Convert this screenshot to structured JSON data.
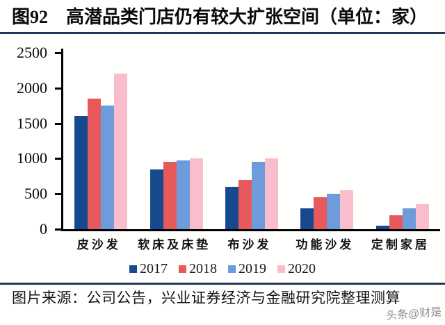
{
  "title": "图92　高潜品类门店仍有较大扩张空间（单位：家）",
  "source_note": "图片来源：公司公告，兴业证券经济与金融研究院整理测算",
  "watermark": "头条@财是",
  "colors": {
    "divider": "#27355A",
    "axis": "#000000",
    "watermark_text": "#8F8F8F",
    "series_2017": "#17498F",
    "series_2018": "#E8595B",
    "series_2019": "#6D9BDB",
    "series_2020": "#F9BDCB"
  },
  "chart_data": {
    "type": "bar",
    "title": "图92 高潜品类门店仍有较大扩张空间（单位：家）",
    "categories": [
      "皮沙发",
      "软床及床垫",
      "布沙发",
      "功能沙发",
      "定制家居"
    ],
    "series": [
      {
        "name": "2017",
        "color": "#17498F",
        "values": [
          1600,
          850,
          600,
          300,
          50
        ]
      },
      {
        "name": "2018",
        "color": "#E8595B",
        "values": [
          1850,
          950,
          700,
          450,
          200
        ]
      },
      {
        "name": "2019",
        "color": "#6D9BDB",
        "values": [
          1750,
          975,
          950,
          500,
          300
        ]
      },
      {
        "name": "2020",
        "color": "#F9BDCB",
        "values": [
          2200,
          1000,
          1000,
          550,
          350
        ]
      }
    ],
    "xlabel": "",
    "ylabel": "",
    "ylim": [
      0,
      2500
    ],
    "ytick_step": 500,
    "yticks": [
      0,
      500,
      1000,
      1500,
      2000,
      2500
    ],
    "grid": false,
    "legend_position": "bottom"
  }
}
